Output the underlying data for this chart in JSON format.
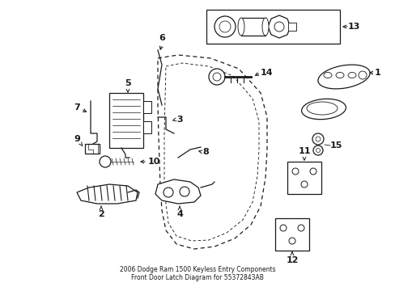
{
  "title": "2006 Dodge Ram 1500 Keyless Entry Components\nFront Door Latch Diagram for 55372843AB",
  "bg_color": "#ffffff",
  "line_color": "#1a1a1a",
  "fig_width": 4.89,
  "fig_height": 3.6,
  "dpi": 100
}
